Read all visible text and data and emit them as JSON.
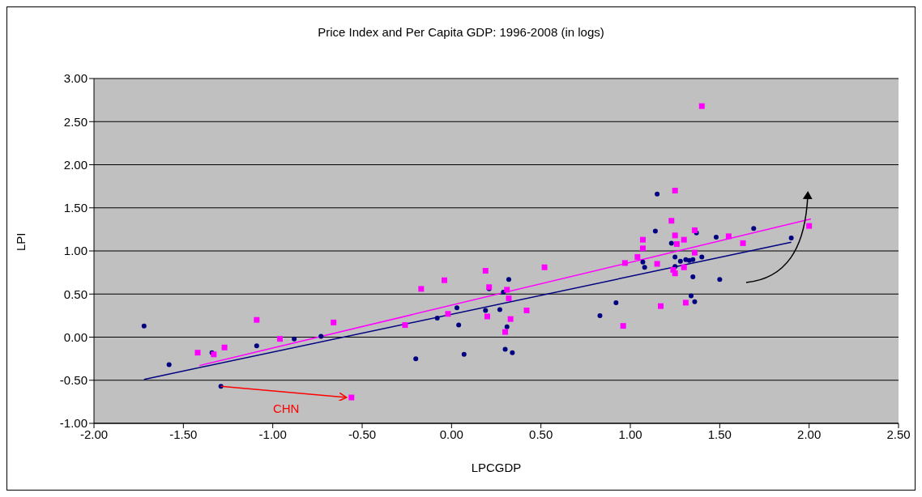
{
  "chart_data": {
    "type": "scatter",
    "title": "Price Index and Per Capita GDP: 1996-2008 (in logs)",
    "xlabel": "LPCGDP",
    "ylabel": "LPI",
    "xlim": [
      -2,
      2.5
    ],
    "ylim": [
      -1,
      3
    ],
    "xticks": [
      {
        "value": -2,
        "label": "-2.00"
      },
      {
        "value": -1.5,
        "label": "-1.50"
      },
      {
        "value": -1,
        "label": "-1.00"
      },
      {
        "value": -0.5,
        "label": "-0.50"
      },
      {
        "value": 0,
        "label": "0.00"
      },
      {
        "value": 0.5,
        "label": "0.50"
      },
      {
        "value": 1,
        "label": "1.00"
      },
      {
        "value": 1.5,
        "label": "1.50"
      },
      {
        "value": 2,
        "label": "2.00"
      },
      {
        "value": 2.5,
        "label": "2.50"
      }
    ],
    "yticks": [
      {
        "value": -1,
        "label": "-1.00"
      },
      {
        "value": -0.5,
        "label": "-0.50"
      },
      {
        "value": 0,
        "label": "0.00"
      },
      {
        "value": 0.5,
        "label": "0.50"
      },
      {
        "value": 1,
        "label": "1.00"
      },
      {
        "value": 1.5,
        "label": "1.50"
      },
      {
        "value": 2,
        "label": "2.00"
      },
      {
        "value": 2.5,
        "label": "2.50"
      },
      {
        "value": 3,
        "label": "3.00"
      }
    ],
    "grid": "y",
    "legend": false,
    "series": [
      {
        "marker": "circle",
        "color": "#000080",
        "x": [
          -1.72,
          -1.58,
          -1.34,
          -1.09,
          -0.88,
          -0.73,
          -1.29,
          -0.2,
          -0.08,
          0.03,
          0.04,
          0.07,
          0.19,
          0.21,
          0.27,
          0.29,
          0.32,
          0.31,
          0.3,
          0.34,
          0.83,
          0.92,
          1.15,
          1.14,
          1.23,
          1.07,
          1.08,
          1.25,
          1.28,
          1.25,
          1.31,
          1.33,
          1.35,
          1.4,
          1.37,
          1.35,
          1.34,
          1.36,
          1.5,
          1.48,
          1.69,
          1.9
        ],
        "values": [
          0.13,
          -0.32,
          -0.18,
          -0.1,
          -0.02,
          0.01,
          -0.57,
          -0.25,
          0.22,
          0.34,
          0.14,
          -0.2,
          0.31,
          0.56,
          0.32,
          0.52,
          0.67,
          0.12,
          -0.14,
          -0.18,
          0.25,
          0.4,
          1.66,
          1.23,
          1.09,
          0.87,
          0.81,
          0.93,
          0.88,
          0.82,
          0.9,
          0.89,
          0.9,
          0.93,
          1.21,
          0.7,
          0.48,
          0.41,
          0.67,
          1.16,
          1.26,
          1.15
        ]
      },
      {
        "marker": "square",
        "color": "#ff00ff",
        "x": [
          -1.42,
          -1.33,
          -1.27,
          -1.09,
          -0.96,
          -0.66,
          -0.56,
          -0.26,
          -0.17,
          -0.04,
          -0.02,
          0.19,
          0.21,
          0.2,
          0.31,
          0.32,
          0.33,
          0.3,
          0.42,
          0.52,
          0.96,
          0.97,
          1.04,
          1.07,
          1.07,
          1.15,
          1.17,
          1.25,
          1.23,
          1.25,
          1.26,
          1.24,
          1.25,
          1.3,
          1.3,
          1.31,
          1.36,
          1.36,
          1.55,
          1.63,
          2.0,
          1.4
        ],
        "values": [
          -0.18,
          -0.2,
          -0.12,
          0.2,
          -0.02,
          0.17,
          -0.7,
          0.14,
          0.56,
          0.66,
          0.27,
          0.77,
          0.58,
          0.24,
          0.55,
          0.45,
          0.21,
          0.06,
          0.31,
          0.81,
          0.13,
          0.86,
          0.93,
          1.13,
          1.03,
          0.85,
          0.36,
          1.7,
          1.35,
          1.18,
          1.08,
          0.78,
          0.74,
          1.13,
          0.81,
          0.4,
          1.24,
          0.98,
          1.17,
          1.09,
          1.29,
          2.68
        ]
      },
      {
        "type": "line",
        "marker": "none",
        "color": "#000080",
        "x": [
          -1.72,
          1.9
        ],
        "values": [
          -0.49,
          1.1
        ]
      },
      {
        "type": "line",
        "marker": "none",
        "color": "#ff00ff",
        "x": [
          -1.41,
          2.01
        ],
        "values": [
          -0.33,
          1.37
        ]
      }
    ],
    "annotations": [
      "CHN"
    ]
  }
}
